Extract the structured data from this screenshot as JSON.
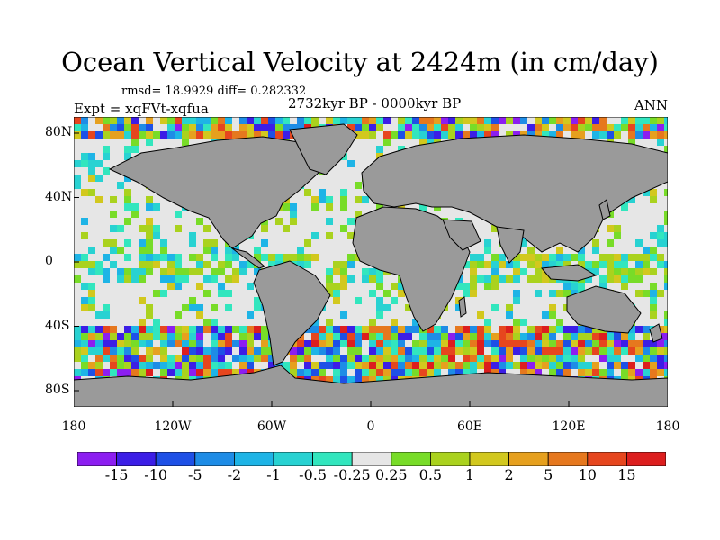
{
  "title": "Ocean Vertical Velocity at 2424m (in cm/day)",
  "stats": "rmsd= 18.9929 diff= 0.282332",
  "experiment": "Expt = xqFVt-xqfua",
  "period": "2732kyr BP - 0000kyr BP",
  "season": "ANN",
  "land_color": "#9a9a9a",
  "lat_ticks": [
    "80N",
    "40N",
    "0",
    "40S",
    "80S"
  ],
  "lon_ticks": [
    "180",
    "120W",
    "60W",
    "0",
    "60E",
    "120E",
    "180"
  ],
  "colorbar": {
    "labels": [
      "-15",
      "-10",
      "-5",
      "-2",
      "-1",
      "-0.5",
      "-0.25",
      "0.25",
      "0.5",
      "1",
      "2",
      "5",
      "10",
      "15"
    ],
    "colors": [
      "#8c1ef0",
      "#3c1ee6",
      "#1e50e6",
      "#1e8ce6",
      "#1eb4e6",
      "#28d2d2",
      "#32e6be",
      "#e6e6e6",
      "#78dc28",
      "#aad21e",
      "#d2c81e",
      "#e6a01e",
      "#e6781e",
      "#e6461e",
      "#dc1e1e"
    ]
  }
}
